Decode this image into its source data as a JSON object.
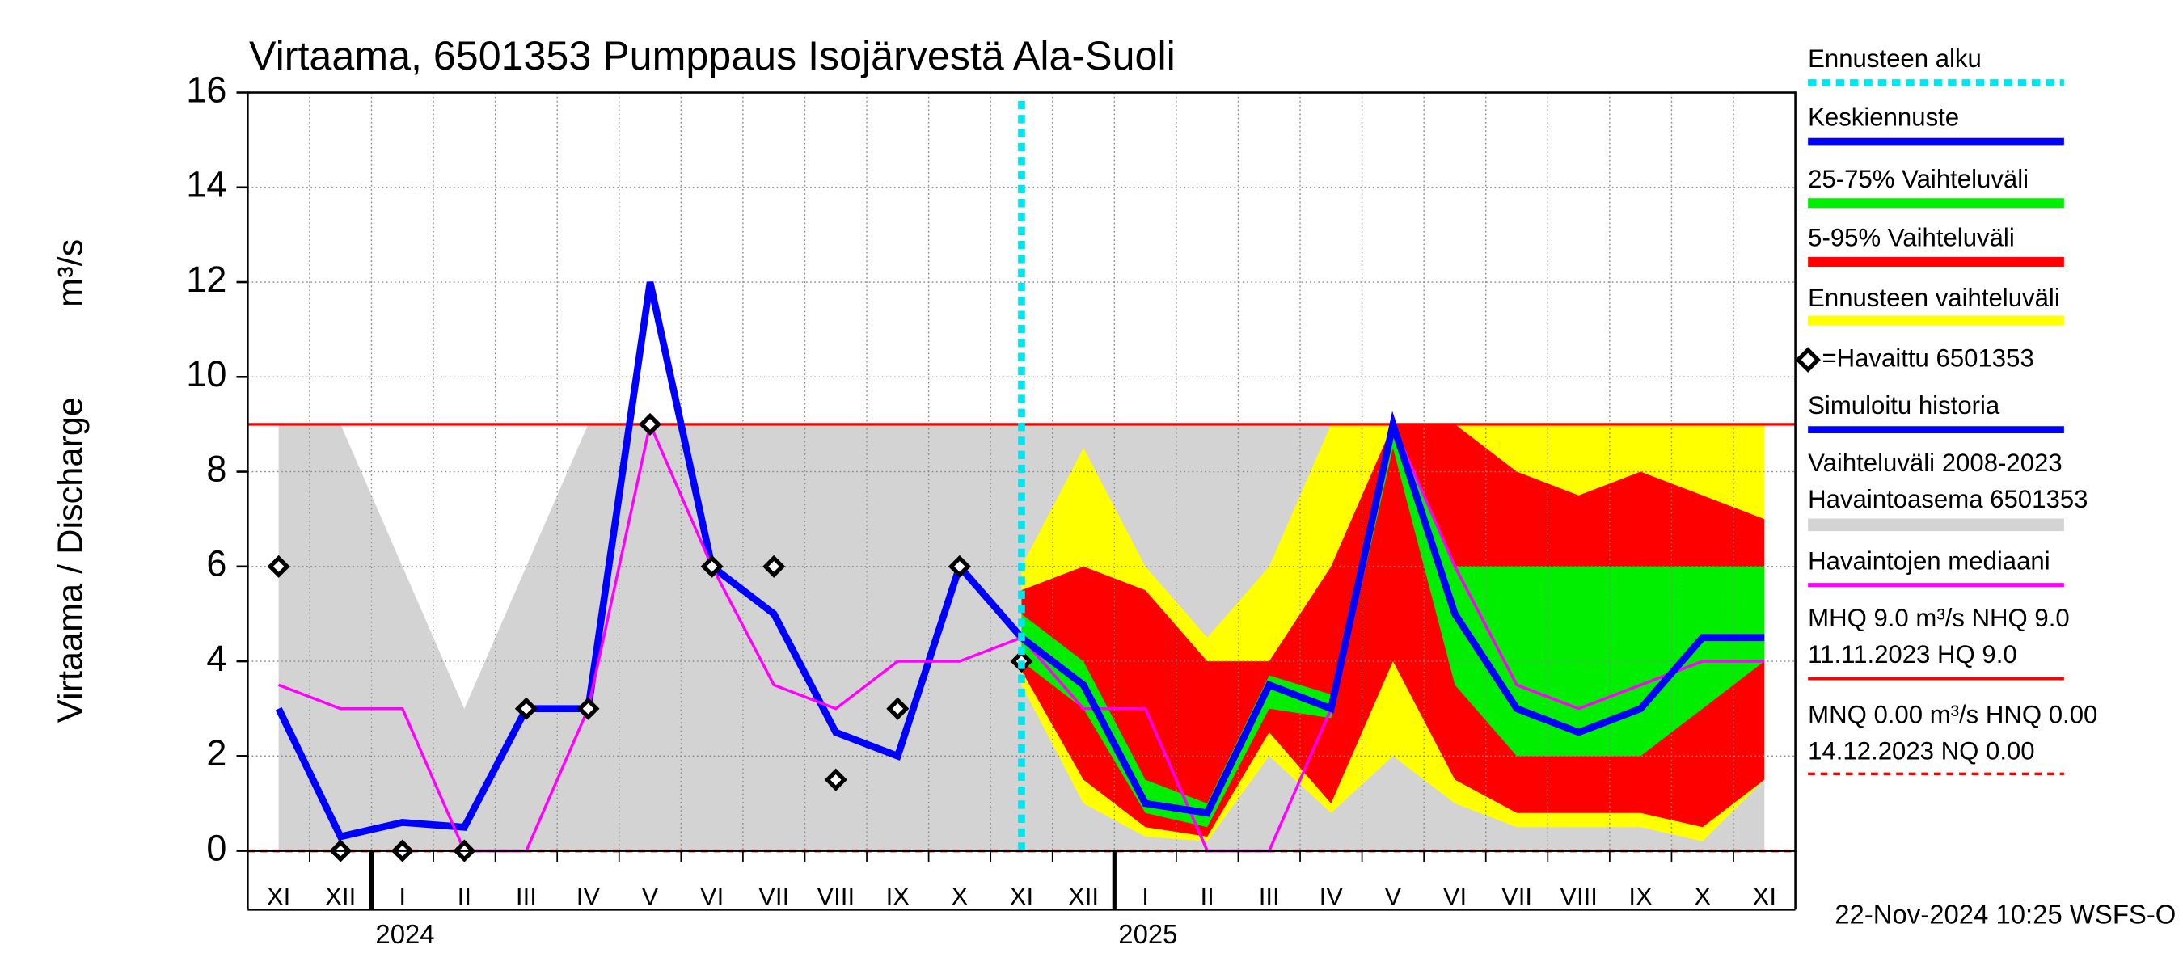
{
  "chart_data": {
    "type": "band-forecast",
    "title": "Virtaama, 6501353 Pumppaus Isojärvestä Ala-Suoli",
    "y_label": "Virtaama / Discharge",
    "y_unit": "m³/s",
    "categories": [
      "XI",
      "XII",
      "I",
      "II",
      "III",
      "IV",
      "V",
      "VI",
      "VII",
      "VIII",
      "IX",
      "X",
      "XI",
      "XII",
      "I",
      "II",
      "III",
      "IV",
      "V",
      "VI",
      "VII",
      "VIII",
      "IX",
      "X",
      "XI"
    ],
    "year_labels": [
      "2024",
      "2025"
    ],
    "ylim": [
      0,
      16
    ],
    "yticks": [
      0,
      2,
      4,
      6,
      8,
      10,
      12,
      14,
      16
    ],
    "grid": true,
    "forecast_start": {
      "name": "Ennusteen alku",
      "color": "#00e5ee"
    },
    "bands": [
      {
        "name": [
          "Vaihteluväli 2008-2023",
          " Havaintoasema 6501353"
        ],
        "color": "#d3d3d3",
        "low": [
          0,
          0,
          0,
          0,
          0,
          0,
          0,
          0,
          0,
          0,
          0,
          0,
          0,
          0,
          0,
          0,
          0,
          0,
          0,
          0,
          0,
          0,
          0,
          0,
          0
        ],
        "high": [
          9,
          9,
          6,
          3,
          6,
          9,
          9,
          9,
          9,
          9,
          9,
          9,
          9,
          9,
          9,
          9,
          9,
          9,
          9,
          9,
          9,
          9,
          9,
          9,
          9
        ]
      },
      {
        "name": [
          "Ennusteen vaihteluväli"
        ],
        "color": "#ffff00",
        "low": [
          null,
          null,
          null,
          null,
          null,
          null,
          null,
          null,
          null,
          null,
          null,
          null,
          3.5,
          1,
          0.3,
          0.2,
          2,
          0.8,
          2,
          1,
          0.5,
          0.5,
          0.5,
          0.2,
          1.5
        ],
        "high": [
          null,
          null,
          null,
          null,
          null,
          null,
          null,
          null,
          null,
          null,
          null,
          null,
          6,
          8.5,
          6,
          4.5,
          6,
          9,
          9,
          9,
          9,
          9,
          9,
          9,
          9
        ]
      },
      {
        "name": [
          "5-95% Vaihteluväli"
        ],
        "color": "#ff0000",
        "low": [
          null,
          null,
          null,
          null,
          null,
          null,
          null,
          null,
          null,
          null,
          null,
          null,
          3.8,
          1.5,
          0.5,
          0.3,
          2.5,
          1,
          4,
          1.5,
          0.8,
          0.8,
          0.8,
          0.5,
          1.5
        ],
        "high": [
          null,
          null,
          null,
          null,
          null,
          null,
          null,
          null,
          null,
          null,
          null,
          null,
          5.5,
          6,
          5.5,
          4,
          4,
          6,
          9,
          9,
          8,
          7.5,
          8,
          7.5,
          7
        ]
      },
      {
        "name": [
          "25-75% Vaihteluväli"
        ],
        "color": "#00ee00",
        "low": [
          null,
          null,
          null,
          null,
          null,
          null,
          null,
          null,
          null,
          null,
          null,
          null,
          4,
          3,
          0.8,
          0.5,
          3,
          2.8,
          8.5,
          3.5,
          2,
          2,
          2,
          3,
          4
        ],
        "high": [
          null,
          null,
          null,
          null,
          null,
          null,
          null,
          null,
          null,
          null,
          null,
          null,
          5,
          4,
          1.5,
          1,
          3.7,
          3.3,
          9,
          6,
          6,
          6,
          6,
          6,
          6
        ]
      }
    ],
    "series": [
      {
        "name": "Simuloitu historia",
        "color": "#0000ff",
        "values": [
          3,
          0.3,
          0.6,
          0.5,
          3,
          3,
          12,
          6,
          5,
          2.5,
          2,
          6,
          4.5,
          null,
          null,
          null,
          null,
          null,
          null,
          null,
          null,
          null,
          null,
          null,
          null
        ]
      },
      {
        "name": "Havaintojen mediaani",
        "color": "#ff00ff",
        "values": [
          3.5,
          3,
          3,
          0,
          0,
          3,
          9,
          6,
          3.5,
          3,
          4,
          4,
          4.5,
          3,
          3,
          0,
          0,
          3,
          9,
          6,
          3.5,
          3,
          3.5,
          4,
          4
        ]
      },
      {
        "name": "Keskiennuste",
        "color": "#0000ff",
        "values": [
          null,
          null,
          null,
          null,
          null,
          null,
          null,
          null,
          null,
          null,
          null,
          null,
          4.5,
          3.5,
          1,
          0.8,
          3.5,
          3,
          9,
          5,
          3,
          2.5,
          3,
          4.5,
          4.5
        ]
      }
    ],
    "observed": {
      "name": "=Havaittu 6501353",
      "values": [
        6,
        0,
        0,
        0,
        3,
        3,
        9,
        6,
        6,
        1.5,
        3,
        6,
        4,
        null,
        null,
        null,
        null,
        null,
        null,
        null,
        null,
        null,
        null,
        null,
        null
      ]
    },
    "reference_lines": [
      {
        "name": [
          "MHQ  9.0 m³/s NHQ  9.0",
          "11.11.2023 HQ  9.0"
        ],
        "value": 9,
        "color": "#ff0000",
        "dashed": false
      },
      {
        "name": [
          "MNQ 0.00 m³/s HNQ 0.00",
          "14.12.2023 NQ 0.00"
        ],
        "value": 0,
        "color": "#ff0000",
        "dashed": true
      }
    ],
    "footer": "22-Nov-2024 10:25 WSFS-O"
  }
}
